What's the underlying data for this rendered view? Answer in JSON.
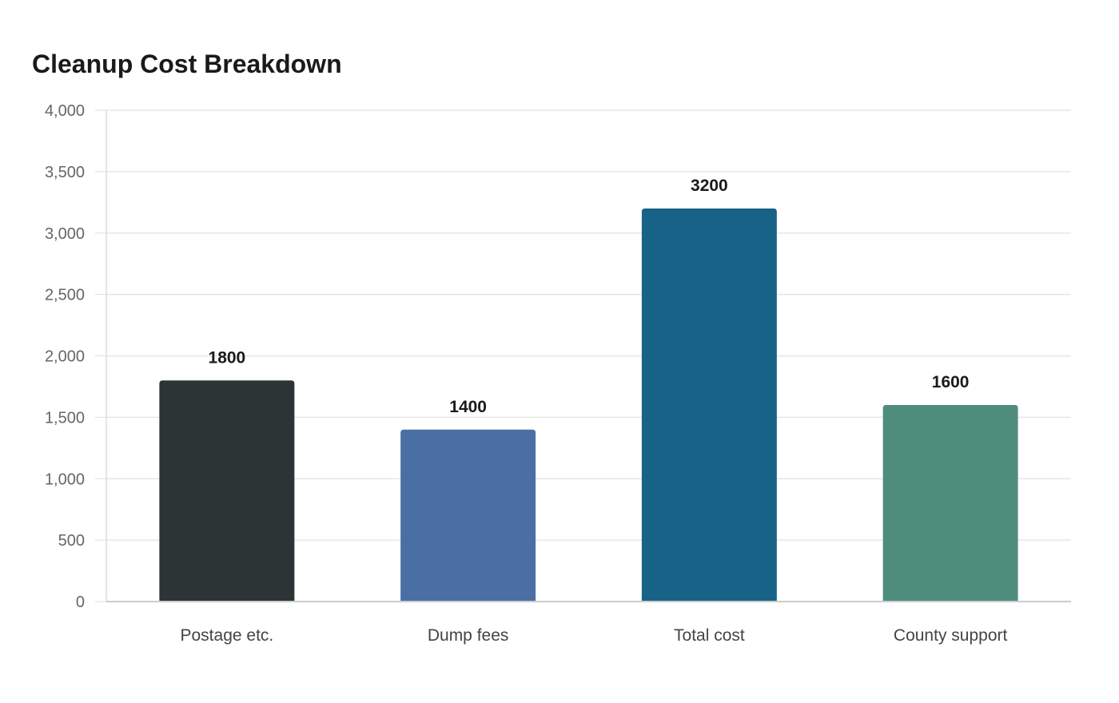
{
  "chart_data": {
    "type": "bar",
    "title": "Cleanup Cost Breakdown",
    "xlabel": "",
    "ylabel": "",
    "categories": [
      "Postage etc.",
      "Dump fees",
      "Total cost",
      "County support"
    ],
    "values": [
      1800,
      1400,
      3200,
      1600
    ],
    "value_labels": [
      "1800",
      "1400",
      "3200",
      "1600"
    ],
    "colors": [
      "#2d3436",
      "#4a6fa5",
      "#186288",
      "#4e8d7c"
    ],
    "ylim": [
      0,
      4000
    ],
    "yticks": [
      0,
      500,
      1000,
      1500,
      2000,
      2500,
      3000,
      3500,
      4000
    ],
    "ytick_labels": [
      "0",
      "500",
      "1,000",
      "1,500",
      "2,000",
      "2,500",
      "3,000",
      "3,500",
      "4,000"
    ],
    "grid": true,
    "legend": "none"
  }
}
